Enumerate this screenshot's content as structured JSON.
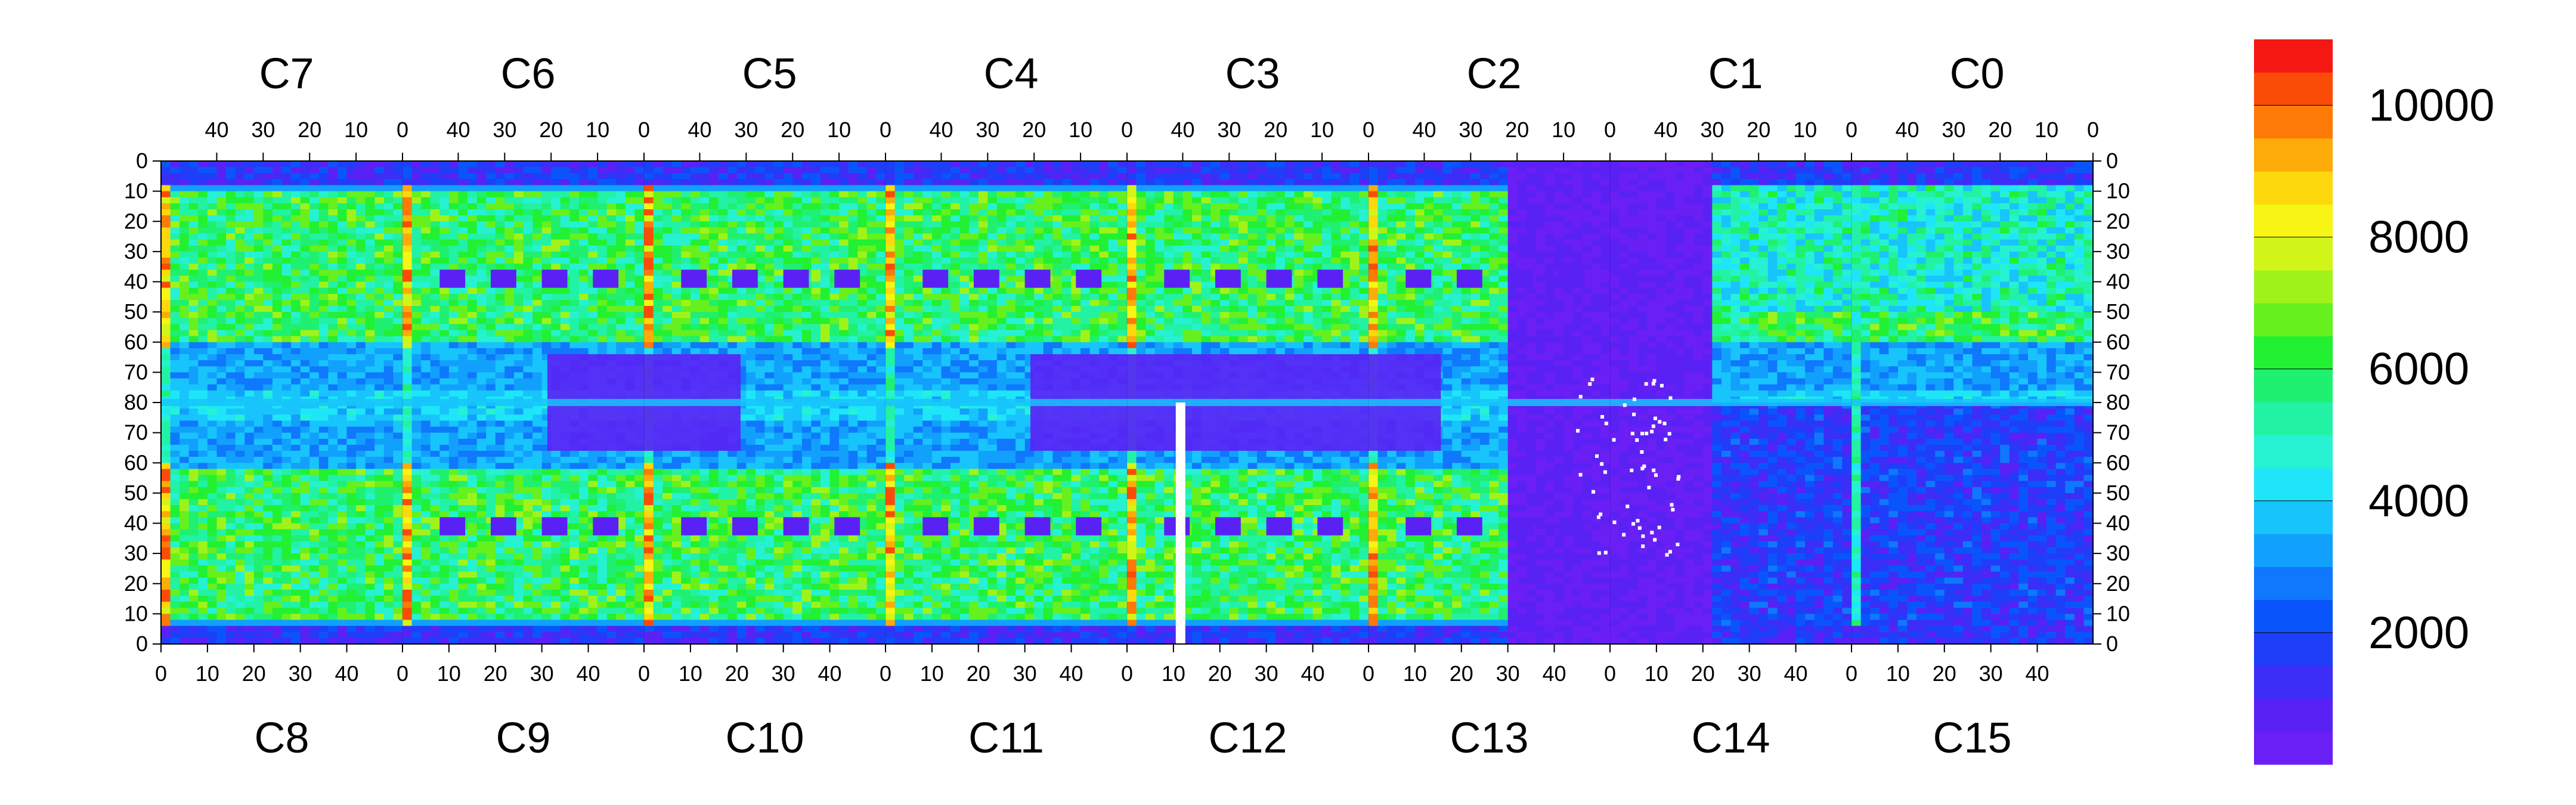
{
  "chart_data": {
    "type": "heatmap",
    "title": "",
    "xlabel": "",
    "ylabel": "",
    "top_chips": [
      "C7",
      "C6",
      "C5",
      "C4",
      "C3",
      "C2",
      "C1",
      "C0"
    ],
    "bottom_chips": [
      "C8",
      "C9",
      "C10",
      "C11",
      "C12",
      "C13",
      "C14",
      "C15"
    ],
    "top_x_ticks": [
      "40",
      "30",
      "20",
      "10",
      "0"
    ],
    "bottom_x_ticks": [
      "0",
      "10",
      "20",
      "30",
      "40"
    ],
    "y_ticks_top_half": [
      "0",
      "10",
      "20",
      "30",
      "40",
      "50",
      "60",
      "70",
      "80"
    ],
    "y_ticks_bottom_half": [
      "70",
      "60",
      "50",
      "40",
      "30",
      "20",
      "10",
      "0"
    ],
    "x_range_per_chip": [
      0,
      52
    ],
    "y_range_per_half": [
      0,
      80
    ],
    "colorbar": {
      "range": [
        0,
        11000
      ],
      "tick_values": [
        2000,
        4000,
        6000,
        8000,
        10000
      ],
      "tick_labels": [
        "2000",
        "4000",
        "6000",
        "8000",
        "10000"
      ],
      "colors": [
        "#6a1ff5",
        "#5a21f5",
        "#3c2ef7",
        "#1f3ef9",
        "#0a55fb",
        "#0f78fd",
        "#12a0fd",
        "#18c4fc",
        "#1ee6f8",
        "#26f2d2",
        "#22f2a4",
        "#1ff070",
        "#22f033",
        "#66f01d",
        "#a0f31a",
        "#d2f519",
        "#f7f513",
        "#fdd80c",
        "#fdab08",
        "#fd7a07",
        "#fb4c07",
        "#f51812"
      ]
    },
    "representative_values": {
      "periphery_low": 500,
      "background_mid": 3000,
      "active_region": 5800,
      "column_edges_hot": 10500,
      "noisy_pixel_marks": "white (value outside colour range)"
    }
  }
}
